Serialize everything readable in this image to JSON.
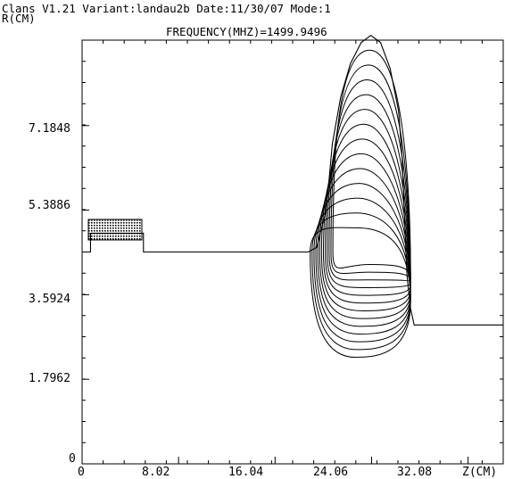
{
  "header": {
    "line1": "Clans V1.21 Variant:landau2b Date:11/30/07 Mode:1",
    "r_label": "R(CM)",
    "frequency": "FREQUENCY(MHZ)=1499.9496"
  },
  "axes": {
    "z_label": "Z(CM)",
    "x_ticks": [
      "0",
      "8.02",
      "16.04",
      "24.06",
      "32.08"
    ],
    "y_ticks": [
      "0",
      "1.7962",
      "3.5924",
      "5.3886",
      "7.1848"
    ]
  },
  "chart_data": {
    "type": "diagram",
    "title": "FREQUENCY(MHZ)=1499.9496",
    "xlabel": "Z(CM)",
    "ylabel": "R(CM)",
    "xlim": [
      0,
      35.0
    ],
    "ylim": [
      0,
      9.0
    ],
    "x_ticks": [
      0,
      8.02,
      16.04,
      24.06,
      32.08
    ],
    "y_ticks": [
      0,
      1.7962,
      3.5924,
      5.3886,
      7.1848
    ],
    "boundary": [
      [
        0,
        4.5
      ],
      [
        0.7,
        4.5
      ],
      [
        0.7,
        4.9
      ],
      [
        5.1,
        4.9
      ],
      [
        5.1,
        4.5
      ],
      [
        18.8,
        4.5
      ],
      [
        19.5,
        4.6
      ],
      [
        20.3,
        5.4
      ],
      [
        20.8,
        6.8
      ],
      [
        21.5,
        7.8
      ],
      [
        22.3,
        8.5
      ],
      [
        23.2,
        8.95
      ],
      [
        24.0,
        9.1
      ],
      [
        24.8,
        8.95
      ],
      [
        25.6,
        8.4
      ],
      [
        26.3,
        7.5
      ],
      [
        26.6,
        6.5
      ],
      [
        26.8,
        5.2
      ],
      [
        27.0,
        4.0
      ],
      [
        27.3,
        3.3
      ],
      [
        27.6,
        2.95
      ],
      [
        35.0,
        2.95
      ]
    ],
    "contour_count": 13
  }
}
